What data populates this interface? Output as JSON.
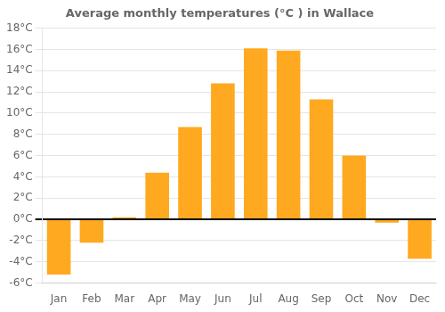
{
  "chart_data": {
    "type": "bar",
    "title": "Average monthly temperatures (°C ) in Wallace",
    "categories": [
      "Jan",
      "Feb",
      "Mar",
      "Apr",
      "May",
      "Jun",
      "Jul",
      "Aug",
      "Sep",
      "Oct",
      "Nov",
      "Dec"
    ],
    "values": [
      -5.2,
      -2.2,
      0.2,
      4.4,
      8.7,
      12.8,
      16.1,
      15.9,
      11.3,
      6.0,
      -0.3,
      -3.7
    ],
    "color": "#FFA920",
    "ylim": [
      -6,
      18
    ],
    "yticks": [
      {
        "value": -6,
        "label": "-6°C"
      },
      {
        "value": -4,
        "label": "-4°C"
      },
      {
        "value": -2,
        "label": "-2°C"
      },
      {
        "value": 0,
        "label": "0°C"
      },
      {
        "value": 2,
        "label": "2°C"
      },
      {
        "value": 4,
        "label": "4°C"
      },
      {
        "value": 6,
        "label": "6°C"
      },
      {
        "value": 8,
        "label": "8°C"
      },
      {
        "value": 10,
        "label": "10°C"
      },
      {
        "value": 12,
        "label": "12°C"
      },
      {
        "value": 14,
        "label": "14°C"
      },
      {
        "value": 16,
        "label": "16°C"
      },
      {
        "value": 18,
        "label": "18°C"
      }
    ],
    "grid": true
  }
}
